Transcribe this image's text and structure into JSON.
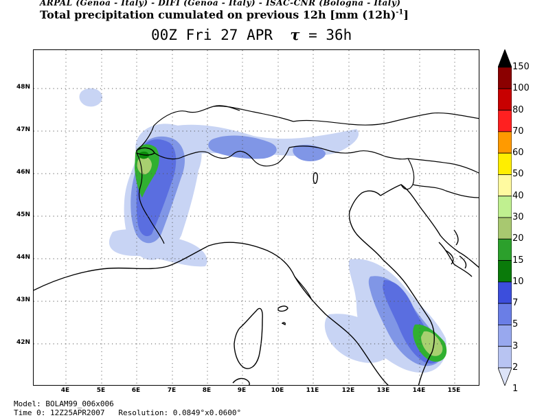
{
  "header": {
    "credits": "ARPAL (Genoa - Italy)  -  DIFI (Genoa - Italy)  -  ISAC-CNR (Bologna - Italy)",
    "title_main": "Total precipitation cumulated on previous 12h [mm (12h)",
    "title_sup": "-1",
    "title_close": "]",
    "time_prefix": "00Z Fri 27 APR",
    "tau_symbol": "τ",
    "tau_value": " = 36h"
  },
  "map": {
    "lat_labels": [
      "48N",
      "47N",
      "46N",
      "45N",
      "44N",
      "43N",
      "42N"
    ],
    "lon_labels": [
      "4E",
      "5E",
      "6E",
      "7E",
      "8E",
      "9E",
      "10E",
      "11E",
      "12E",
      "13E",
      "14E",
      "15E"
    ],
    "colors": {
      "coast": "#000000",
      "grid": "#555555",
      "p_lightest": "#c8d4f4",
      "p_light": "#a8b8ee",
      "p_mid": "#8096e6",
      "p_blue": "#5a6ee0",
      "p_dkblue": "#3c4edc",
      "p_green_lt": "#a8d070",
      "p_green": "#30b030",
      "p_green_dk": "#0a8a0a"
    }
  },
  "colorbar": {
    "labels": [
      "150",
      "100",
      "80",
      "70",
      "60",
      "50",
      "40",
      "30",
      "20",
      "15",
      "10",
      "7",
      "5",
      "3",
      "2",
      "1"
    ],
    "colors": [
      "#000000",
      "#8b0000",
      "#c80000",
      "#ff2020",
      "#ff9a00",
      "#ffee00",
      "#fffaa0",
      "#c0f090",
      "#a8c870",
      "#2ca02c",
      "#0a7a0a",
      "#3c4edc",
      "#6a7ee6",
      "#98a8ee",
      "#b8c4f2",
      "#dde4f8"
    ]
  },
  "footer": {
    "model": "Model: BOLAM99_006x006",
    "time": "Time 0: 12Z25APR2007",
    "resolution": "Resolution: 0.0849°x0.0600°"
  }
}
